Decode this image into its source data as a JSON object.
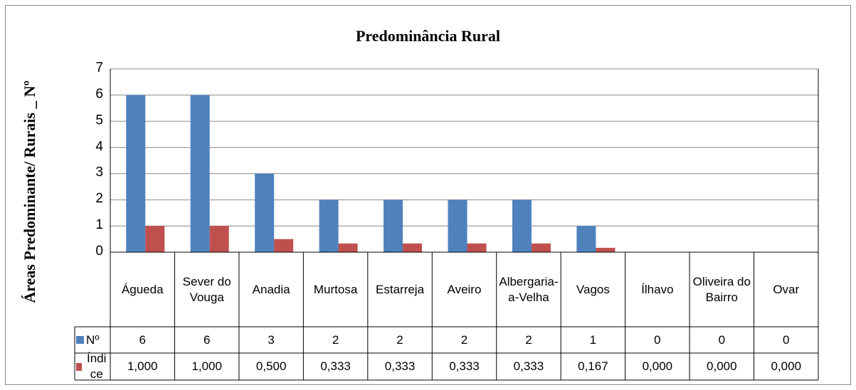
{
  "chart_data": {
    "type": "bar",
    "title": "Predominância Rural",
    "y_label": "Áreas Predominante/ Rurais _ Nº",
    "categories": [
      "Águeda",
      "Sever do Vouga",
      "Anadia",
      "Murtosa",
      "Estarreja",
      "Aveiro",
      "Albergaria-a-Velha",
      "Vagos",
      "Ílhavo",
      "Oliveira do Bairro",
      "Ovar"
    ],
    "series": [
      {
        "name": "Nº",
        "color": "#4f81bd",
        "values": [
          6,
          6,
          3,
          2,
          2,
          2,
          2,
          1,
          0,
          0,
          0
        ]
      },
      {
        "name": "Índice",
        "color": "#c0504d",
        "values": [
          1,
          1,
          0.5,
          0.333,
          0.333,
          0.333,
          0.333,
          0.167,
          0,
          0,
          0
        ],
        "value_labels": [
          "1,000",
          "1,000",
          "0,500",
          "0,333",
          "0,333",
          "0,333",
          "0,333",
          "0,167",
          "0,000",
          "0,000",
          "0,000"
        ]
      }
    ],
    "ylim": [
      0,
      7
    ],
    "yticks": [
      0,
      1,
      2,
      3,
      4,
      5,
      6,
      7
    ],
    "grid": true
  }
}
